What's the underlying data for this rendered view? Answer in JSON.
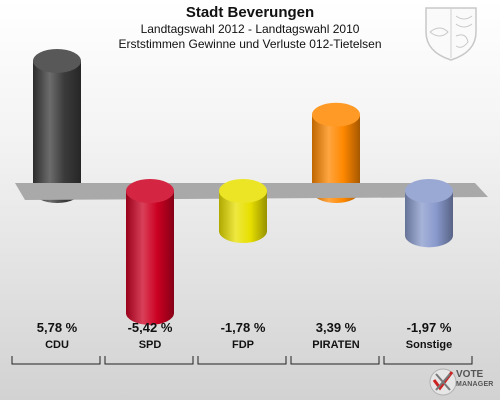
{
  "title": "Stadt Beverungen",
  "subtitle1": "Landtagswahl 2012 - Landtagswahl 2010",
  "subtitle2": "Erststimmen Gewinne und Verluste 012-Tietelsen",
  "logo": {
    "line1": "VOTE",
    "line2": "MANAGER"
  },
  "chart_data": {
    "type": "bar",
    "categories": [
      "CDU",
      "SPD",
      "FDP",
      "PIRATEN",
      "Sonstige"
    ],
    "values": [
      5.78,
      -5.42,
      -1.78,
      3.39,
      -1.97
    ],
    "value_labels": [
      "5,78 %",
      "-5,42 %",
      "-1,78 %",
      "3,39 %",
      "-1,97 %"
    ],
    "colors": [
      "#3b3b3b",
      "#cc0022",
      "#e8e000",
      "#ff8800",
      "#8899cc"
    ],
    "title": "Stadt Beverungen",
    "ylim": [
      -6,
      7
    ],
    "grid": false,
    "legend": "none"
  }
}
